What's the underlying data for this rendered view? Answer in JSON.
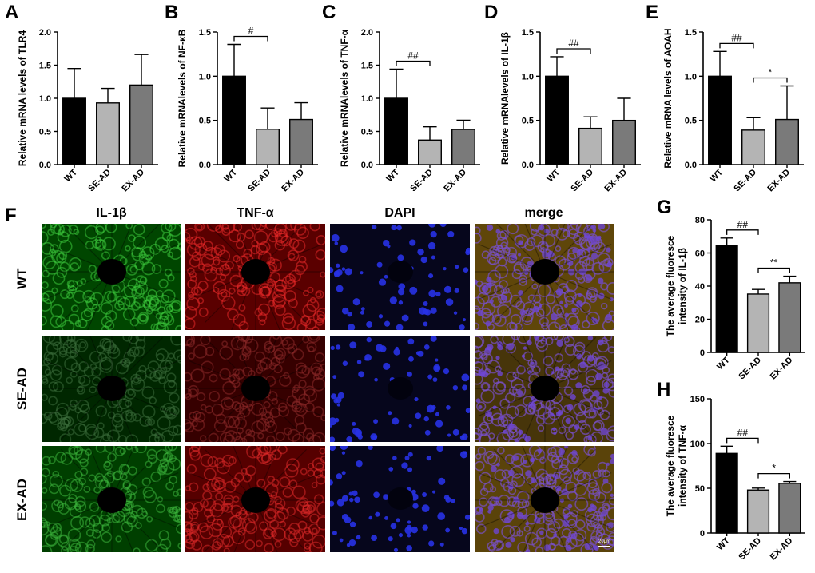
{
  "panels": {
    "A": "A",
    "B": "B",
    "C": "C",
    "D": "D",
    "E": "E",
    "F": "F",
    "G": "G",
    "H": "H"
  },
  "colors": {
    "WT": "#000000",
    "SE-AD": "#b4b4b4",
    "EX-AD": "#7a7a7a",
    "green": "#1a7a1a",
    "red": "#b01818",
    "blue": "#2028c8"
  },
  "micrograph": {
    "columns": [
      "IL-1β",
      "TNF-α",
      "DAPI",
      "merge"
    ],
    "rows": [
      "WT",
      "SE-AD",
      "EX-AD"
    ],
    "scale_bar": "20μm"
  },
  "chart_data": [
    {
      "id": "A",
      "type": "bar",
      "ylabel": "Relative mRNA levels of  TLR4",
      "categories": [
        "WT",
        "SE-AD",
        "EX-AD"
      ],
      "values": [
        1.0,
        0.93,
        1.2
      ],
      "errors": [
        0.45,
        0.22,
        0.46
      ],
      "ylim": [
        0,
        2.0
      ],
      "yticks": [
        "0.0",
        "0.5",
        "1.0",
        "1.5",
        "2.0"
      ],
      "significance": []
    },
    {
      "id": "B",
      "type": "bar",
      "ylabel": "Relative mRNAlevels of  NF-κB",
      "categories": [
        "WT",
        "SE-AD",
        "EX-AD"
      ],
      "values": [
        1.0,
        0.4,
        0.51
      ],
      "errors": [
        0.36,
        0.24,
        0.19
      ],
      "ylim": [
        0,
        1.5
      ],
      "yticks": [
        "0.0",
        "0.5",
        "1.0",
        "1.5"
      ],
      "significance": [
        {
          "from": 0,
          "to": 1,
          "label": "#"
        }
      ]
    },
    {
      "id": "C",
      "type": "bar",
      "ylabel": "Relative mRNAlevels of  TNF-α",
      "categories": [
        "WT",
        "SE-AD",
        "EX-AD"
      ],
      "values": [
        1.0,
        0.37,
        0.53
      ],
      "errors": [
        0.44,
        0.2,
        0.14
      ],
      "ylim": [
        0,
        2.0
      ],
      "yticks": [
        "0.0",
        "0.5",
        "1.0",
        "1.5",
        "2.0"
      ],
      "significance": [
        {
          "from": 0,
          "to": 1,
          "label": "##"
        }
      ]
    },
    {
      "id": "D",
      "type": "bar",
      "ylabel": "Relative mRNAlevels of  IL-1β",
      "categories": [
        "WT",
        "SE-AD",
        "EX-AD"
      ],
      "values": [
        1.0,
        0.41,
        0.5
      ],
      "errors": [
        0.22,
        0.13,
        0.25
      ],
      "ylim": [
        0,
        1.5
      ],
      "yticks": [
        "0.0",
        "0.5",
        "1.0",
        "1.5"
      ],
      "significance": [
        {
          "from": 0,
          "to": 1,
          "label": "##"
        }
      ]
    },
    {
      "id": "E",
      "type": "bar",
      "ylabel": "Relative mRNA levels of  AOAH",
      "categories": [
        "WT",
        "SE-AD",
        "EX-AD"
      ],
      "values": [
        1.0,
        0.39,
        0.51
      ],
      "errors": [
        0.28,
        0.14,
        0.38
      ],
      "ylim": [
        0,
        1.5
      ],
      "yticks": [
        "0.0",
        "0.5",
        "1.0",
        "1.5"
      ],
      "significance": [
        {
          "from": 0,
          "to": 1,
          "label": "##"
        },
        {
          "from": 1,
          "to": 2,
          "label": "*"
        }
      ]
    },
    {
      "id": "G",
      "type": "bar",
      "ylabel": [
        "The average fluoresce",
        "intensity of IL-1β"
      ],
      "categories": [
        "WT",
        "SE-AD",
        "EX-AD"
      ],
      "values": [
        64.5,
        35.2,
        42.0
      ],
      "errors": [
        4.5,
        2.8,
        4.0
      ],
      "ylim": [
        0,
        80
      ],
      "yticks": [
        "0",
        "20",
        "40",
        "60",
        "80"
      ],
      "significance": [
        {
          "from": 0,
          "to": 1,
          "label": "##"
        },
        {
          "from": 1,
          "to": 2,
          "label": "**"
        }
      ]
    },
    {
      "id": "H",
      "type": "bar",
      "ylabel": [
        "The average fluoresce",
        "intensity of TNF-α"
      ],
      "categories": [
        "WT",
        "SE-AD",
        "EX-AD"
      ],
      "values": [
        89.0,
        48.0,
        55.5
      ],
      "errors": [
        8.0,
        2.2,
        2.0
      ],
      "ylim": [
        0,
        150
      ],
      "yticks": [
        "0",
        "50",
        "100",
        "150"
      ],
      "significance": [
        {
          "from": 0,
          "to": 1,
          "label": "##"
        },
        {
          "from": 1,
          "to": 2,
          "label": "*"
        }
      ]
    }
  ]
}
